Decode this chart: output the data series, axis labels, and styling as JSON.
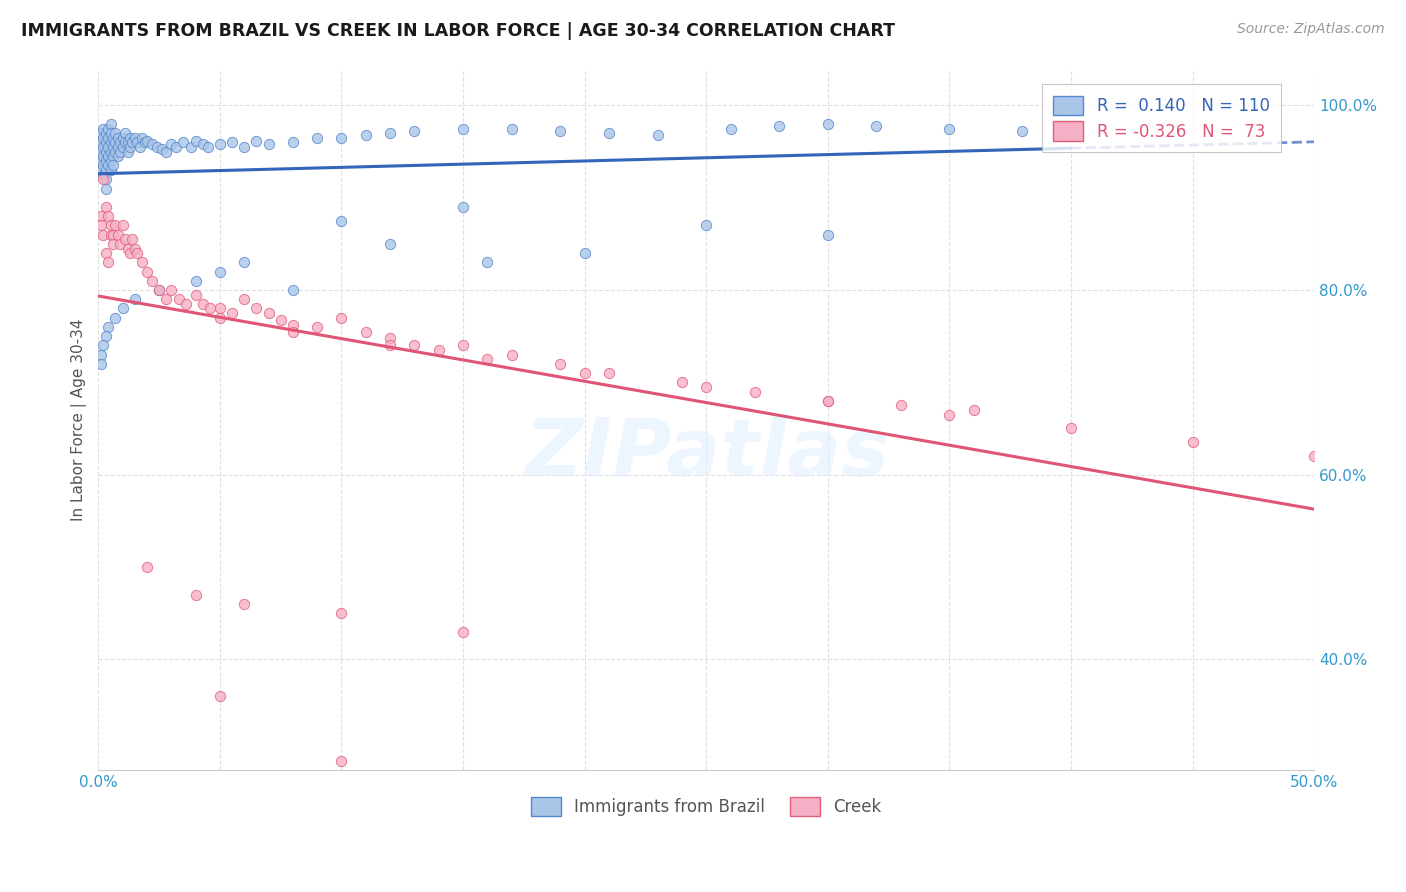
{
  "title": "IMMIGRANTS FROM BRAZIL VS CREEK IN LABOR FORCE | AGE 30-34 CORRELATION CHART",
  "source": "Source: ZipAtlas.com",
  "ylabel": "In Labor Force | Age 30-34",
  "xlim": [
    0.0,
    0.5
  ],
  "ylim": [
    0.28,
    1.04
  ],
  "xtick_positions": [
    0.0,
    0.05,
    0.1,
    0.15,
    0.2,
    0.25,
    0.3,
    0.35,
    0.4,
    0.45,
    0.5
  ],
  "xtick_labels": [
    "0.0%",
    "",
    "",
    "",
    "",
    "",
    "",
    "",
    "",
    "",
    "50.0%"
  ],
  "ytick_positions": [
    0.4,
    0.6,
    0.8,
    1.0
  ],
  "ytick_labels": [
    "40.0%",
    "60.0%",
    "80.0%",
    "100.0%"
  ],
  "brazil_R": 0.14,
  "brazil_N": 110,
  "creek_R": -0.326,
  "creek_N": 73,
  "brazil_color": "#aac5e8",
  "creek_color": "#f5b0c5",
  "brazil_edge_color": "#5588cc",
  "creek_edge_color": "#e0607a",
  "brazil_trend_color": "#3366bb",
  "creek_trend_color": "#e05575",
  "watermark": "ZIPatlas",
  "legend_brazil_label": "Immigrants from Brazil",
  "legend_creek_label": "Creek",
  "brazil_scatter_x": [
    0.001,
    0.001,
    0.001,
    0.001,
    0.001,
    0.002,
    0.002,
    0.002,
    0.002,
    0.002,
    0.002,
    0.003,
    0.003,
    0.003,
    0.003,
    0.003,
    0.003,
    0.003,
    0.004,
    0.004,
    0.004,
    0.004,
    0.004,
    0.005,
    0.005,
    0.005,
    0.005,
    0.005,
    0.005,
    0.006,
    0.006,
    0.006,
    0.006,
    0.007,
    0.007,
    0.007,
    0.008,
    0.008,
    0.008,
    0.009,
    0.009,
    0.01,
    0.01,
    0.011,
    0.011,
    0.012,
    0.012,
    0.013,
    0.013,
    0.014,
    0.015,
    0.016,
    0.017,
    0.018,
    0.019,
    0.02,
    0.022,
    0.024,
    0.026,
    0.028,
    0.03,
    0.032,
    0.035,
    0.038,
    0.04,
    0.043,
    0.045,
    0.05,
    0.055,
    0.06,
    0.065,
    0.07,
    0.08,
    0.09,
    0.1,
    0.11,
    0.12,
    0.13,
    0.15,
    0.17,
    0.19,
    0.21,
    0.23,
    0.26,
    0.28,
    0.3,
    0.32,
    0.35,
    0.38,
    0.4,
    0.05,
    0.08,
    0.12,
    0.16,
    0.2,
    0.25,
    0.3,
    0.15,
    0.1,
    0.06,
    0.04,
    0.025,
    0.015,
    0.01,
    0.007,
    0.004,
    0.003,
    0.002,
    0.001,
    0.001
  ],
  "brazil_scatter_y": [
    0.97,
    0.96,
    0.95,
    0.94,
    0.93,
    0.975,
    0.965,
    0.955,
    0.945,
    0.935,
    0.925,
    0.97,
    0.96,
    0.95,
    0.94,
    0.93,
    0.92,
    0.91,
    0.975,
    0.965,
    0.955,
    0.945,
    0.935,
    0.98,
    0.97,
    0.96,
    0.95,
    0.94,
    0.93,
    0.965,
    0.955,
    0.945,
    0.935,
    0.97,
    0.96,
    0.95,
    0.965,
    0.955,
    0.945,
    0.96,
    0.95,
    0.965,
    0.955,
    0.97,
    0.96,
    0.96,
    0.95,
    0.965,
    0.955,
    0.96,
    0.965,
    0.96,
    0.955,
    0.965,
    0.96,
    0.962,
    0.958,
    0.955,
    0.953,
    0.95,
    0.958,
    0.955,
    0.96,
    0.955,
    0.962,
    0.958,
    0.955,
    0.958,
    0.96,
    0.955,
    0.962,
    0.958,
    0.96,
    0.965,
    0.965,
    0.968,
    0.97,
    0.972,
    0.975,
    0.975,
    0.972,
    0.97,
    0.968,
    0.975,
    0.978,
    0.98,
    0.978,
    0.975,
    0.972,
    0.968,
    0.82,
    0.8,
    0.85,
    0.83,
    0.84,
    0.87,
    0.86,
    0.89,
    0.875,
    0.83,
    0.81,
    0.8,
    0.79,
    0.78,
    0.77,
    0.76,
    0.75,
    0.74,
    0.73,
    0.72
  ],
  "creek_scatter_x": [
    0.001,
    0.001,
    0.002,
    0.002,
    0.003,
    0.003,
    0.004,
    0.004,
    0.005,
    0.005,
    0.006,
    0.006,
    0.007,
    0.008,
    0.009,
    0.01,
    0.011,
    0.012,
    0.013,
    0.014,
    0.015,
    0.016,
    0.018,
    0.02,
    0.022,
    0.025,
    0.028,
    0.03,
    0.033,
    0.036,
    0.04,
    0.043,
    0.046,
    0.05,
    0.055,
    0.06,
    0.065,
    0.07,
    0.075,
    0.08,
    0.09,
    0.1,
    0.11,
    0.12,
    0.13,
    0.14,
    0.15,
    0.17,
    0.19,
    0.21,
    0.24,
    0.27,
    0.3,
    0.33,
    0.36,
    0.05,
    0.08,
    0.12,
    0.16,
    0.2,
    0.25,
    0.3,
    0.35,
    0.4,
    0.45,
    0.5,
    0.02,
    0.04,
    0.06,
    0.1,
    0.15,
    0.05,
    0.1
  ],
  "creek_scatter_y": [
    0.88,
    0.87,
    0.92,
    0.86,
    0.89,
    0.84,
    0.88,
    0.83,
    0.87,
    0.86,
    0.86,
    0.85,
    0.87,
    0.86,
    0.85,
    0.87,
    0.855,
    0.845,
    0.84,
    0.855,
    0.845,
    0.84,
    0.83,
    0.82,
    0.81,
    0.8,
    0.79,
    0.8,
    0.79,
    0.785,
    0.795,
    0.785,
    0.78,
    0.78,
    0.775,
    0.79,
    0.78,
    0.775,
    0.768,
    0.762,
    0.76,
    0.77,
    0.755,
    0.748,
    0.74,
    0.735,
    0.74,
    0.73,
    0.72,
    0.71,
    0.7,
    0.69,
    0.68,
    0.675,
    0.67,
    0.77,
    0.755,
    0.74,
    0.725,
    0.71,
    0.695,
    0.68,
    0.665,
    0.65,
    0.635,
    0.62,
    0.5,
    0.47,
    0.46,
    0.45,
    0.43,
    0.36,
    0.29
  ]
}
